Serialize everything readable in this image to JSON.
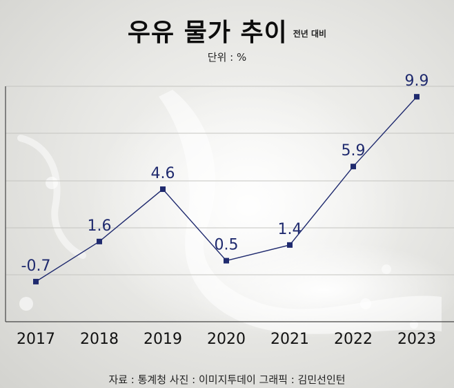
{
  "header": {
    "title": "우유 물가 추이",
    "note": "전년 대비",
    "unit": "단위 : %"
  },
  "chart_data": {
    "type": "line",
    "categories": [
      "2017",
      "2018",
      "2019",
      "2020",
      "2021",
      "2022",
      "2023"
    ],
    "series": [
      {
        "values": [
          -0.7,
          1.6,
          4.6,
          0.5,
          1.4,
          5.9,
          9.9
        ]
      }
    ],
    "data_labels": [
      "-0.7",
      "1.6",
      "4.6",
      "0.5",
      "1.4",
      "5.9",
      "9.9"
    ],
    "ylim": [
      -3,
      10.5
    ],
    "grid": true,
    "line_color": "#1f2a6e",
    "marker_color": "#1f2a6e",
    "label_color": "#1f2a6e"
  },
  "footer": {
    "source": "자료 : 통계청 사진 : 이미지투데이 그래픽 : 김민선인턴"
  }
}
